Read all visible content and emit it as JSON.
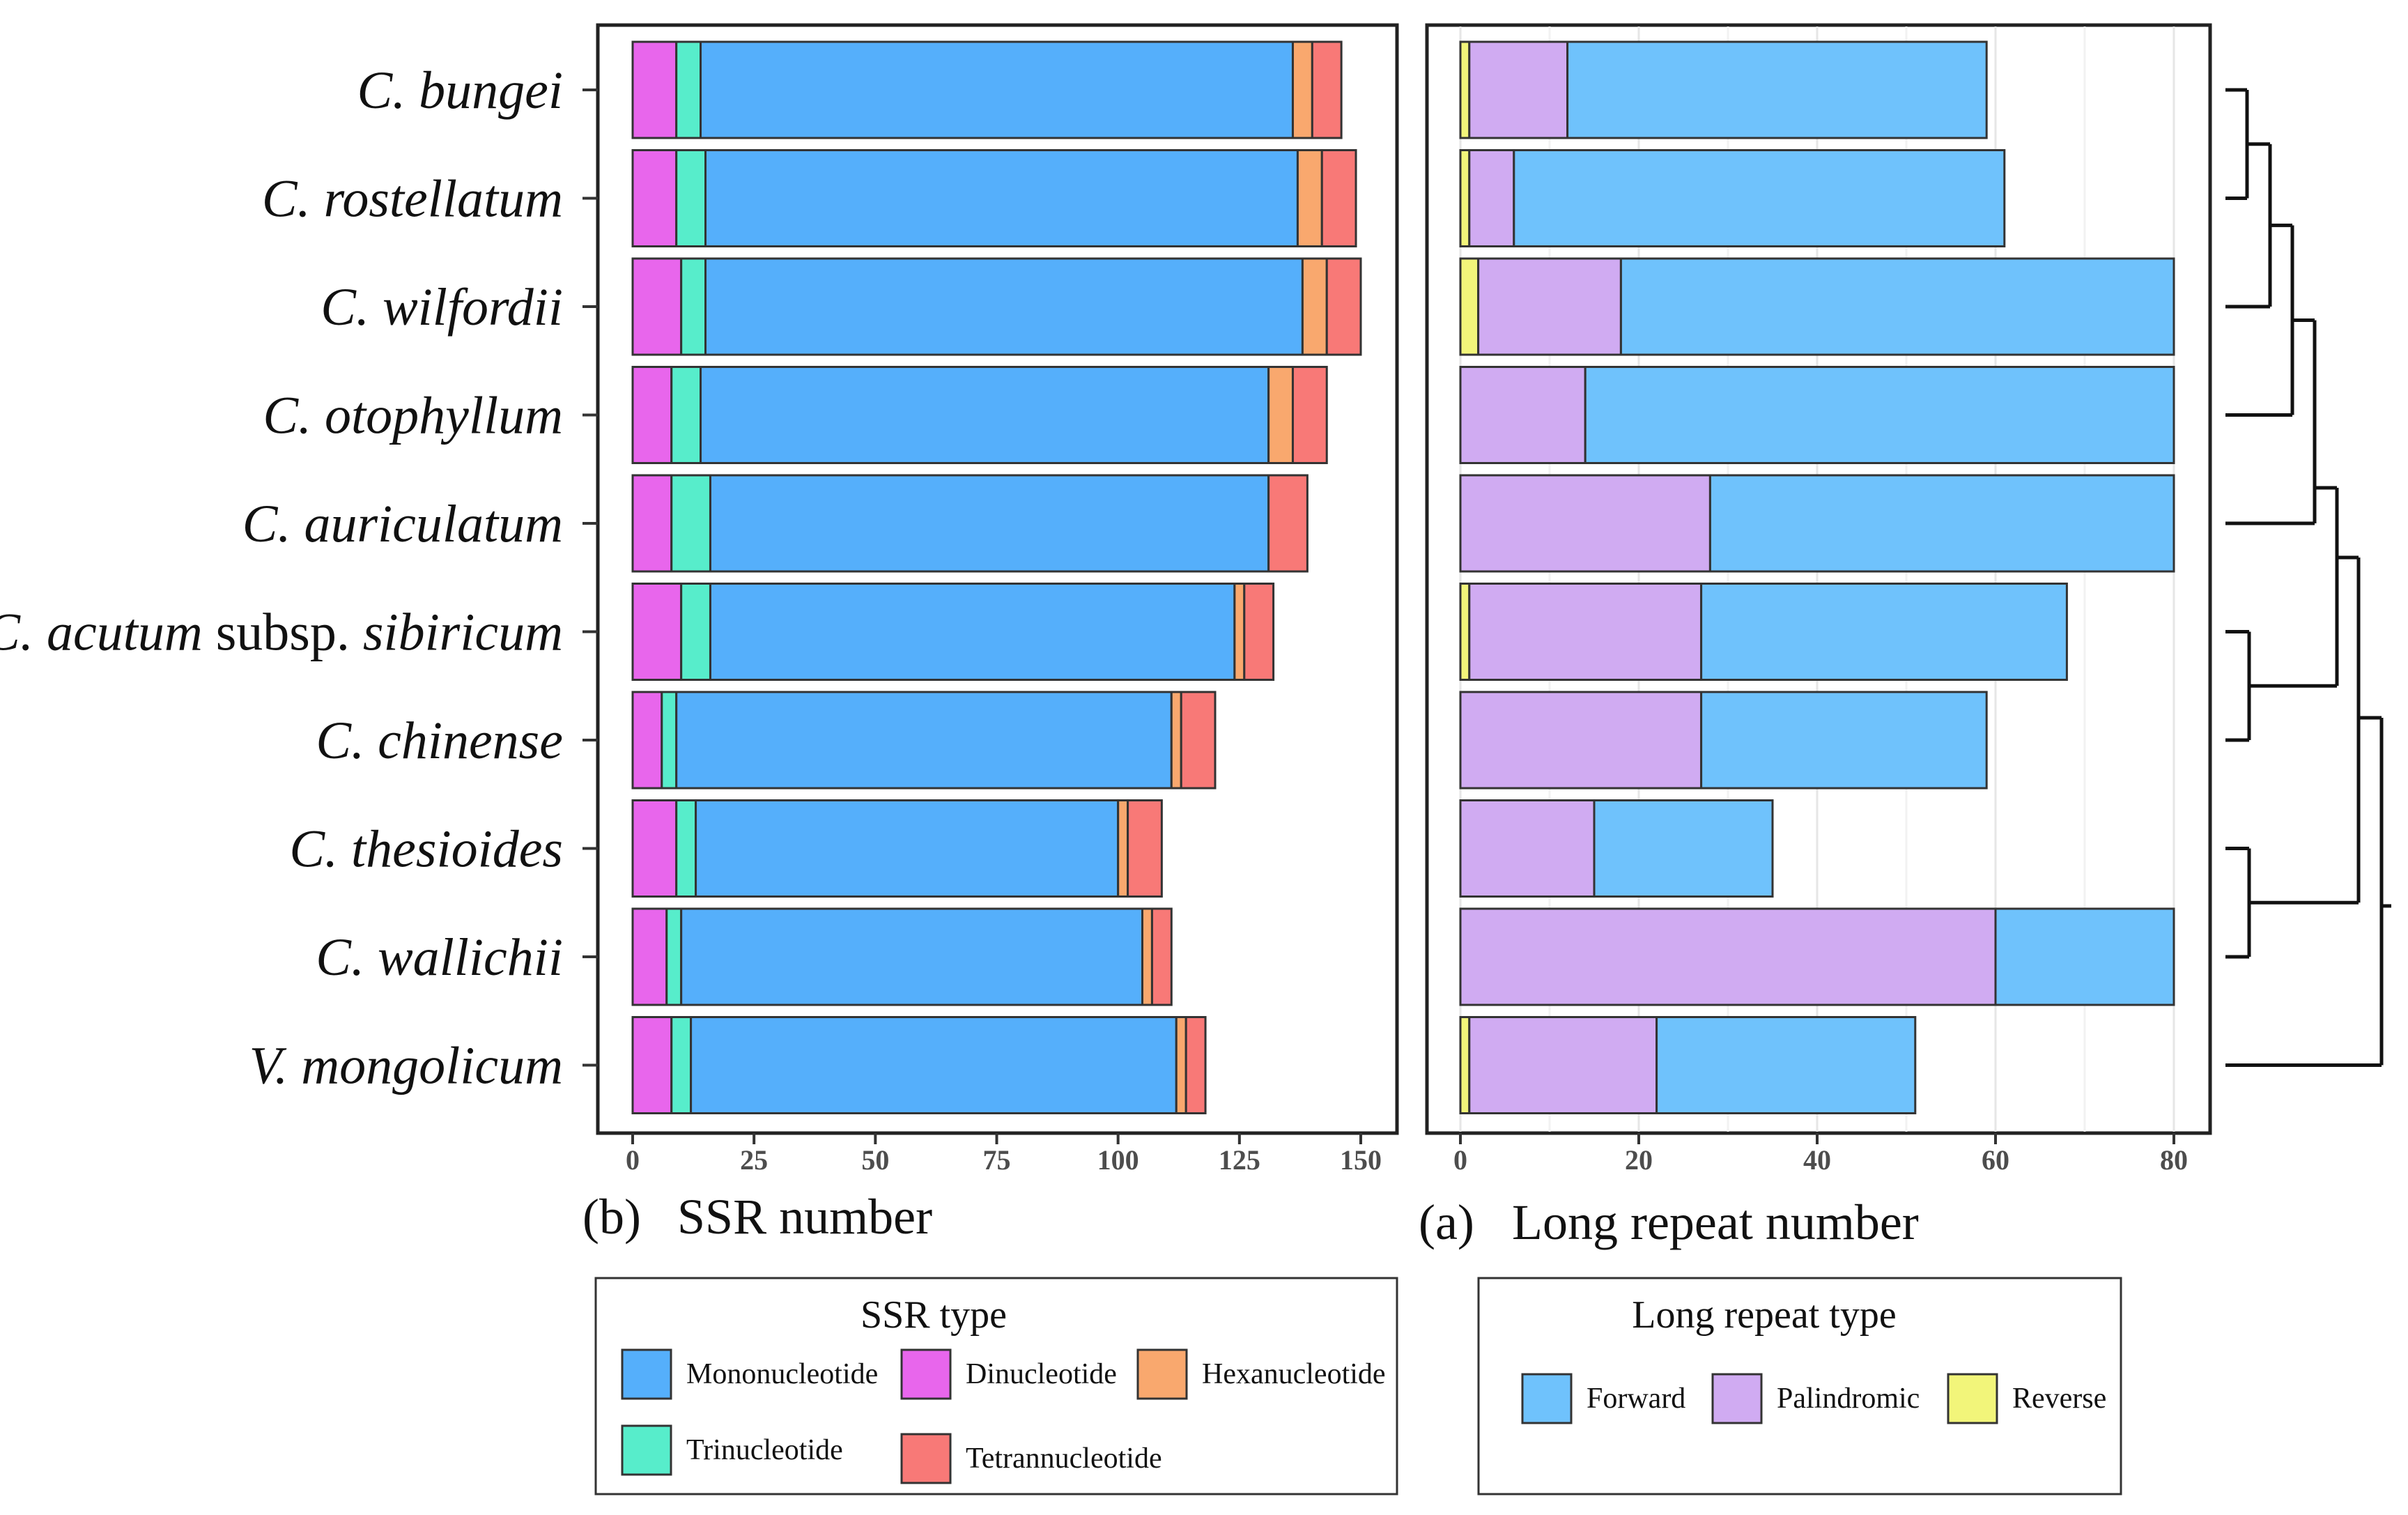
{
  "chart_data": [
    {
      "type": "bar",
      "orientation": "horizontal",
      "stacked": true,
      "panel_label": "(b)",
      "xlabel": "SSR number",
      "xlim": [
        0,
        150
      ],
      "xticks": [
        0,
        25,
        50,
        75,
        100,
        125,
        150
      ],
      "categories": [
        "C. bungei",
        "C. rostellatum",
        "C. wilfordii",
        "C. otophyllum",
        "C. auriculatum",
        "C. acutum subsp. sibiricum",
        "C. chinense",
        "C. thesioides",
        "C. wallichii",
        "V. mongolicum"
      ],
      "stack_order": [
        "Dinucleotide",
        "Trinucleotide",
        "Mononucleotide",
        "Hexanucleotide",
        "Tetrannucleotide"
      ],
      "series": [
        {
          "name": "Dinucleotide",
          "color": "#E866EC",
          "values": [
            9,
            9,
            10,
            8,
            8,
            10,
            6,
            9,
            7,
            8
          ]
        },
        {
          "name": "Trinucleotide",
          "color": "#57EDCB",
          "values": [
            5,
            6,
            5,
            6,
            8,
            6,
            3,
            4,
            3,
            4
          ]
        },
        {
          "name": "Mononucleotide",
          "color": "#55AFFB",
          "values": [
            122,
            122,
            123,
            117,
            115,
            108,
            102,
            87,
            95,
            100
          ]
        },
        {
          "name": "Hexanucleotide",
          "color": "#F9A86E",
          "values": [
            4,
            5,
            5,
            5,
            0,
            2,
            2,
            2,
            2,
            2
          ]
        },
        {
          "name": "Tetrannucleotide",
          "color": "#F87977",
          "values": [
            6,
            7,
            7,
            7,
            8,
            6,
            7,
            7,
            4,
            4
          ]
        }
      ],
      "legend": {
        "title": "SSR type",
        "entries": [
          "Mononucleotide",
          "Dinucleotide",
          "Hexanucleotide",
          "Trinucleotide",
          "Tetrannucleotide"
        ]
      }
    },
    {
      "type": "bar",
      "orientation": "horizontal",
      "stacked": true,
      "panel_label": "(a)",
      "xlabel": "Long repeat number",
      "xlim": [
        0,
        80
      ],
      "xticks": [
        0,
        20,
        40,
        60,
        80
      ],
      "grid": true,
      "categories": [
        "C. bungei",
        "C. rostellatum",
        "C. wilfordii",
        "C. otophyllum",
        "C. auriculatum",
        "C. acutum subsp. sibiricum",
        "C. chinense",
        "C. thesioides",
        "C. wallichii",
        "V. mongolicum"
      ],
      "stack_order": [
        "Reverse",
        "Palindromic",
        "Forward"
      ],
      "series": [
        {
          "name": "Reverse",
          "color": "#F2F57A",
          "values": [
            1,
            1,
            2,
            0,
            0,
            1,
            0,
            0,
            0,
            1
          ]
        },
        {
          "name": "Palindromic",
          "color": "#D0ABF2",
          "values": [
            11,
            5,
            16,
            14,
            28,
            26,
            27,
            15,
            60,
            21
          ]
        },
        {
          "name": "Forward",
          "color": "#6FC2FC",
          "values": [
            47,
            55,
            62,
            66,
            52,
            41,
            32,
            20,
            20,
            29
          ]
        }
      ],
      "legend": {
        "title": "Long repeat type",
        "entries": [
          "Forward",
          "Palindromic",
          "Reverse"
        ]
      }
    }
  ],
  "dendrogram": {
    "leaf_order": [
      "C. bungei",
      "C. rostellatum",
      "C. wilfordii",
      "C. otophyllum",
      "C. auriculatum",
      "C. acutum subsp. sibiricum",
      "C. chinense",
      "C. thesioides",
      "C. wallichii",
      "V. mongolicum"
    ]
  }
}
